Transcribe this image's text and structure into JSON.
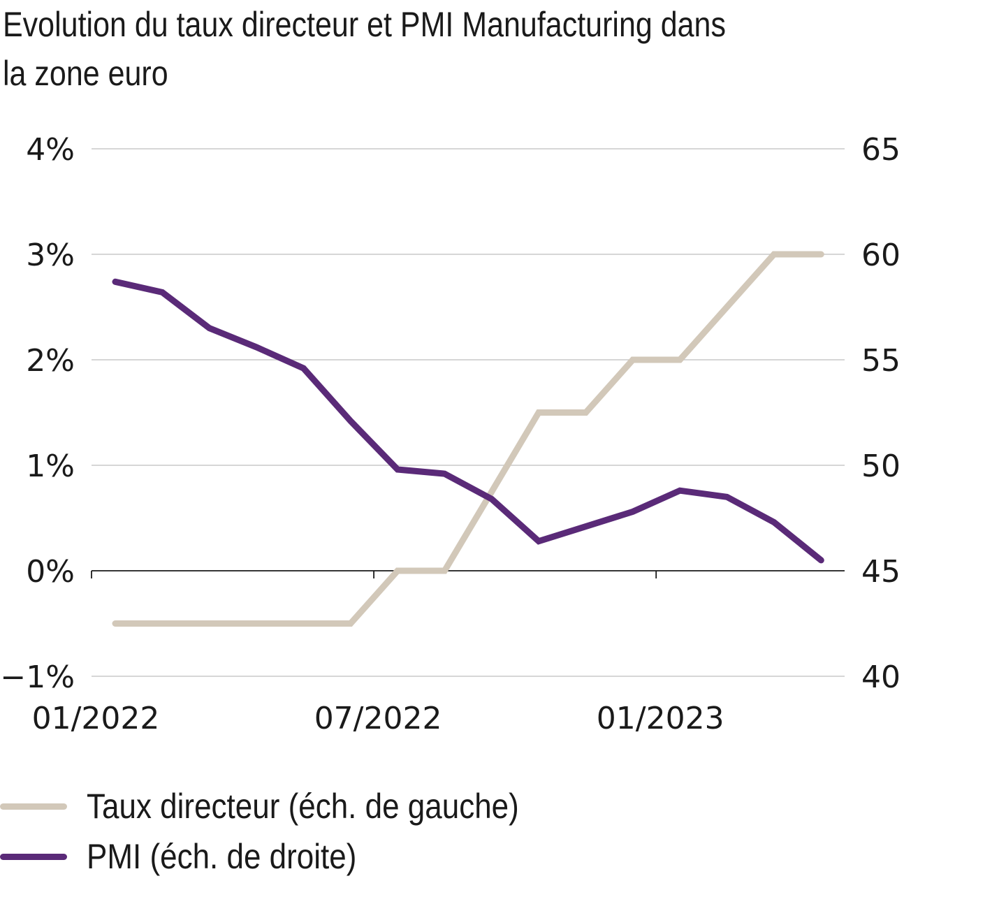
{
  "chart_data": {
    "type": "line",
    "title": "Evolution du taux directeur et PMI Manufacturing dans la zone euro",
    "title_lines": [
      "Evolution du taux directeur et PMI Manufacturing dans",
      "la zone euro"
    ],
    "x": [
      "01/2022",
      "02/2022",
      "03/2022",
      "04/2022",
      "05/2022",
      "06/2022",
      "07/2022",
      "08/2022",
      "09/2022",
      "10/2022",
      "11/2022",
      "12/2022",
      "01/2023",
      "02/2023",
      "03/2023",
      "04/2023"
    ],
    "x_tick_labels": [
      "01/2022",
      "07/2022",
      "01/2023"
    ],
    "xlabel": "",
    "y_left": {
      "label": "",
      "range": [
        -1,
        4
      ],
      "ticks": [
        4,
        3,
        2,
        1,
        0,
        -1
      ],
      "tick_labels": [
        "4%",
        "3%",
        "2%",
        "1%",
        "0%",
        "−1%"
      ]
    },
    "y_right": {
      "label": "",
      "range": [
        40,
        65
      ],
      "ticks": [
        65,
        60,
        55,
        50,
        45,
        40
      ],
      "tick_labels": [
        "65",
        "60",
        "55",
        "50",
        "45",
        "40"
      ]
    },
    "grid": true,
    "legend_position": "bottom-left",
    "series": [
      {
        "name": "Taux directeur (éch. de gauche)",
        "axis": "left",
        "color": "#d2c8b9",
        "values": [
          -0.5,
          -0.5,
          -0.5,
          -0.5,
          -0.5,
          -0.5,
          0.0,
          0.0,
          0.75,
          1.5,
          1.5,
          2.0,
          2.0,
          2.5,
          3.0,
          3.0
        ]
      },
      {
        "name": "PMI (éch. de droite)",
        "axis": "right",
        "color": "#5a2a78",
        "values": [
          58.7,
          58.2,
          56.5,
          55.6,
          54.6,
          52.1,
          49.8,
          49.6,
          48.4,
          46.4,
          47.1,
          47.8,
          48.8,
          48.5,
          47.3,
          45.5
        ]
      }
    ]
  },
  "legend": {
    "items": [
      {
        "label": "Taux directeur (éch. de gauche)",
        "color": "#d2c8b9"
      },
      {
        "label": "PMI (éch. de droite)",
        "color": "#5a2a78"
      }
    ]
  }
}
